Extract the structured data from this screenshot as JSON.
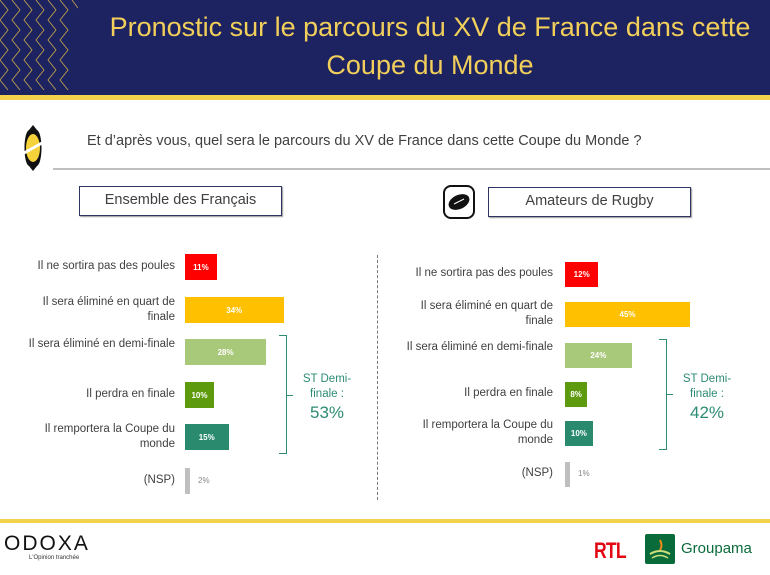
{
  "header": {
    "title_line1": "Pronostic sur le parcours du XV de France dans cette",
    "title_line2": "Coupe du Monde"
  },
  "question": "Et d’après vous, quel sera le parcours du XV de France dans cette Coupe du Monde ?",
  "colors": {
    "navy": "#1c2360",
    "gold": "#f2cf5b",
    "red": "#ff0000",
    "orange": "#ffc000",
    "lightgreen": "#a9c97a",
    "green": "#5e9a0e",
    "teal": "#2a8a6e",
    "grey": "#bfbfbf",
    "st": "#2e8b74"
  },
  "chart_data": [
    {
      "type": "bar",
      "title": "Ensemble des Français",
      "categories": [
        "Il ne sortira pas des poules",
        "Il sera éliminé en quart de finale",
        "Il sera éliminé en demi-finale",
        "Il perdra en finale",
        "Il remportera la Coupe du monde",
        "(NSP)"
      ],
      "values": [
        11,
        34,
        28,
        10,
        15,
        2
      ],
      "value_labels": [
        "11%",
        "34%",
        "28%",
        "10%",
        "15%",
        "2%"
      ],
      "subtotal": {
        "label_line1": "ST Demi-",
        "label_line2": "finale :",
        "value": "53%"
      }
    },
    {
      "type": "bar",
      "title": "Amateurs de Rugby",
      "categories": [
        "Il ne sortira pas des poules",
        "Il sera éliminé en quart de finale",
        "Il sera éliminé en demi-finale",
        "Il perdra en finale",
        "Il remportera la Coupe du monde",
        "(NSP)"
      ],
      "values": [
        12,
        45,
        24,
        8,
        10,
        1
      ],
      "value_labels": [
        "12%",
        "45%",
        "24%",
        "8%",
        "10%",
        "1%"
      ],
      "subtotal": {
        "label_line1": "ST Demi-",
        "label_line2": "finale :",
        "value": "42%"
      }
    }
  ],
  "footer": {
    "odoxa": "ODOXA",
    "odoxa_tagline": "L'Opinion tranchée",
    "rtl": "RTL",
    "groupama": "Groupama"
  }
}
